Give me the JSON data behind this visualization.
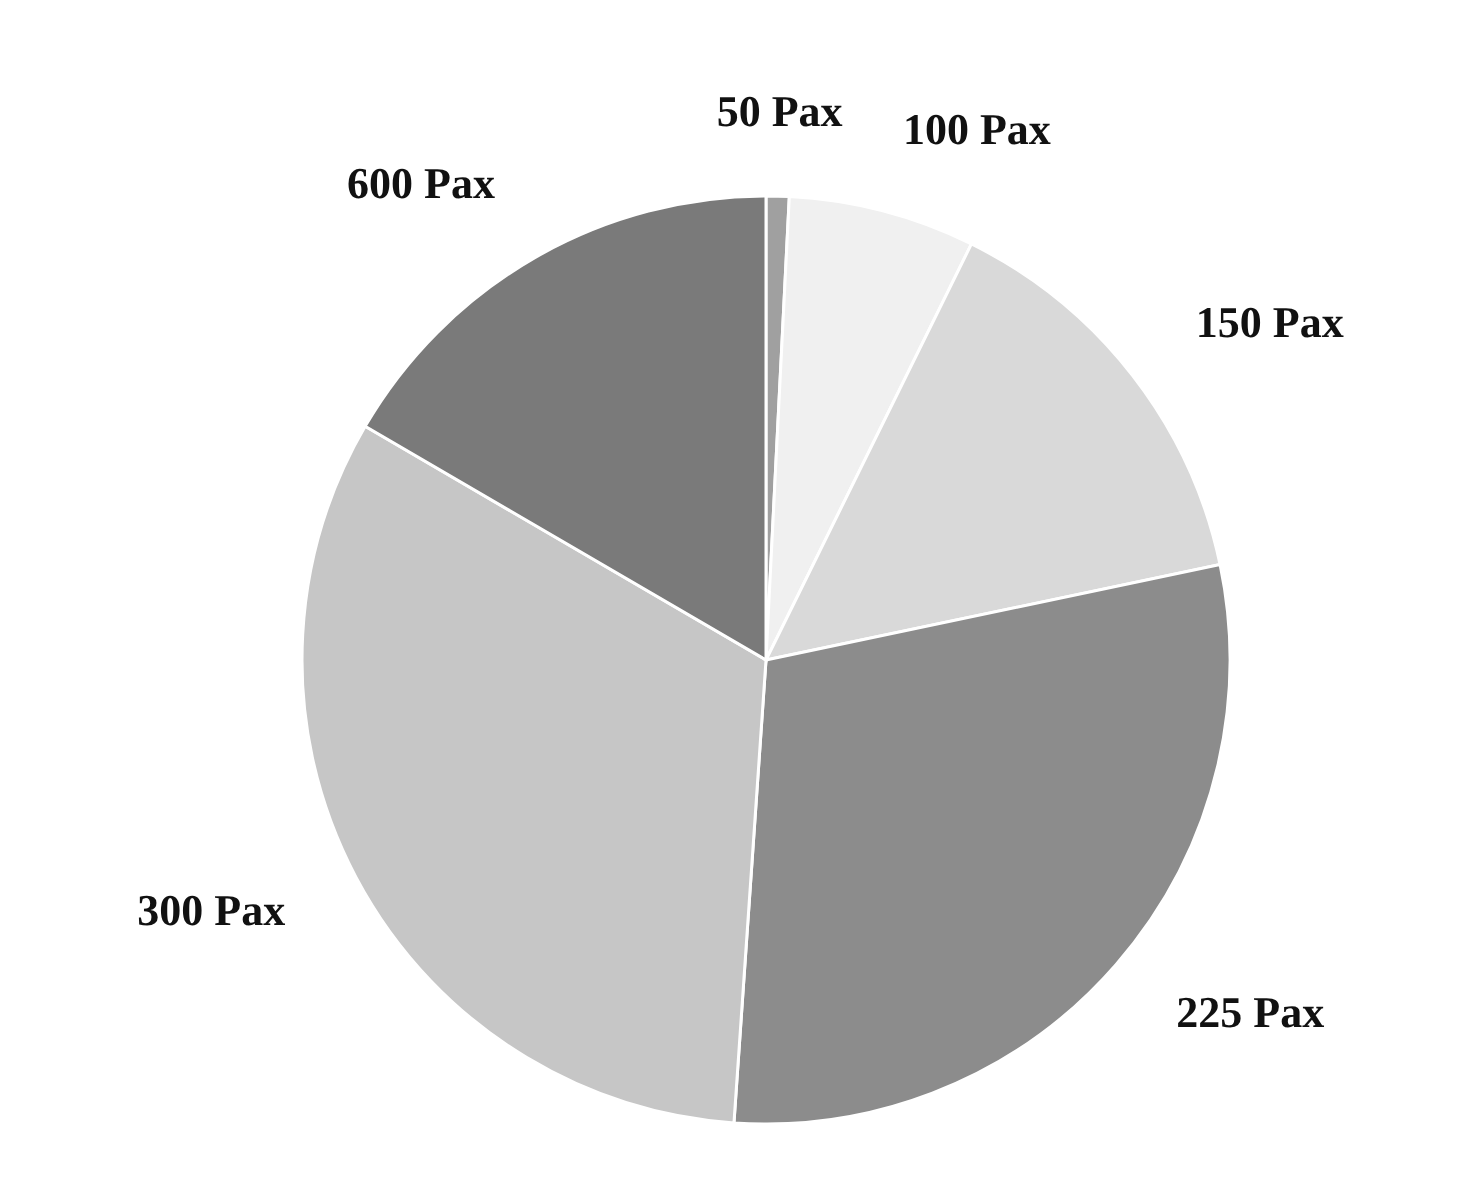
{
  "chart_data": {
    "type": "pie",
    "categories": [
      "50 Pax",
      "100 Pax",
      "150 Pax",
      "225 Pax",
      "300 Pax",
      "600 Pax"
    ],
    "values": [
      0.8,
      6.5,
      14.4,
      29.4,
      32.3,
      16.6
    ],
    "colors": [
      "#a0a0a0",
      "#f0f0f0",
      "#d9d9d9",
      "#8c8c8c",
      "#c6c6c6",
      "#7a7a7a"
    ]
  }
}
